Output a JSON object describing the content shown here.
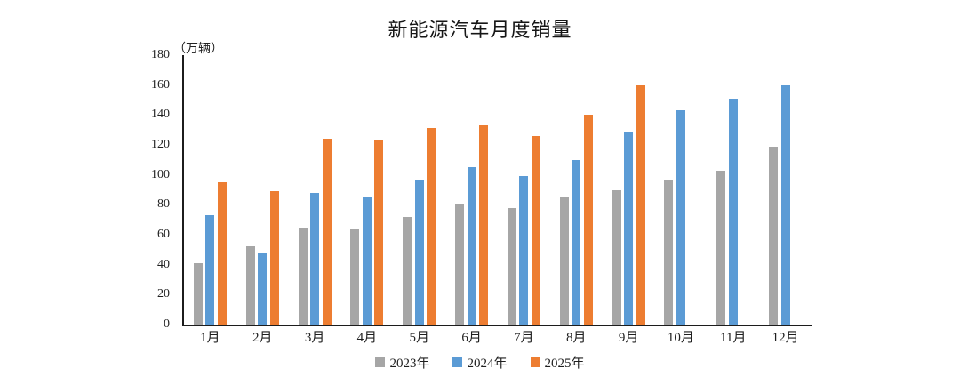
{
  "page": {
    "background": "#ffffff"
  },
  "chart_data": {
    "type": "bar",
    "title": "新能源汽车月度销量",
    "unit_label": "（万辆）",
    "xlabel": "",
    "ylabel": "",
    "categories": [
      "1月",
      "2月",
      "3月",
      "4月",
      "5月",
      "6月",
      "7月",
      "8月",
      "9月",
      "10月",
      "11月",
      "12月"
    ],
    "series": [
      {
        "name": "2023年",
        "color": "#a6a6a6",
        "values": [
          41,
          52,
          65,
          64,
          72,
          81,
          78,
          85,
          90,
          96,
          103,
          119
        ]
      },
      {
        "name": "2024年",
        "color": "#5b9bd5",
        "values": [
          73,
          48,
          88,
          85,
          96,
          105,
          99,
          110,
          129,
          143,
          151,
          160
        ]
      },
      {
        "name": "2025年",
        "color": "#ed7d31",
        "values": [
          95,
          89,
          124,
          123,
          131,
          133,
          126,
          140,
          160,
          null,
          null,
          null
        ]
      }
    ],
    "ylim": [
      0,
      180
    ],
    "yticks": [
      0,
      20,
      40,
      60,
      80,
      100,
      120,
      140,
      160,
      180
    ],
    "grid": false,
    "legend_position": "bottom",
    "axis_color": "#1c1c1c"
  }
}
